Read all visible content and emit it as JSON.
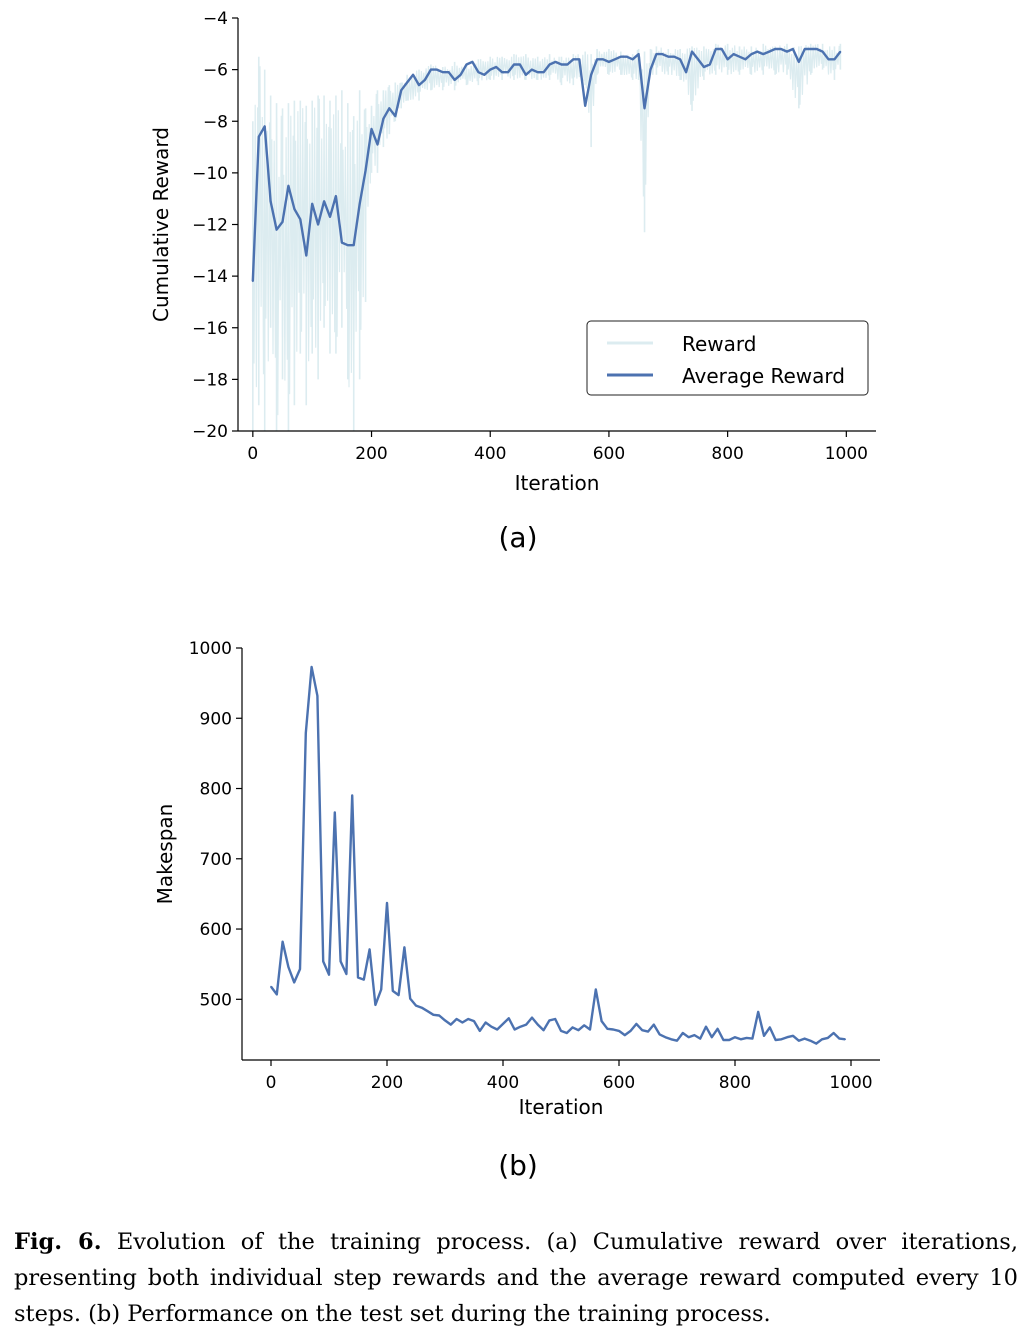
{
  "chart_data": [
    {
      "id": "a",
      "type": "line",
      "panel_label": "(a)",
      "xlabel": "Iteration",
      "ylabel": "Cumulative Reward",
      "xlim": [
        -25,
        1050
      ],
      "ylim": [
        -20,
        -4
      ],
      "xticks": [
        0,
        200,
        400,
        600,
        800,
        1000
      ],
      "yticks": [
        -20,
        -18,
        -16,
        -14,
        -12,
        -10,
        -8,
        -6,
        -4
      ],
      "ytick_labels": [
        "−20",
        "−18",
        "−16",
        "−14",
        "−12",
        "−10",
        "−8",
        "−6",
        "−4"
      ],
      "legend_position": "lower-right",
      "series": [
        {
          "name": "Reward",
          "color": "#dcecf0",
          "envelope": {
            "x": [
              0,
              10,
              20,
              30,
              40,
              50,
              60,
              70,
              80,
              90,
              100,
              110,
              120,
              130,
              140,
              150,
              160,
              170,
              180,
              190,
              200,
              210,
              220,
              230,
              240,
              250,
              260,
              280,
              300,
              320,
              340,
              360,
              380,
              400,
              420,
              440,
              460,
              480,
              500,
              520,
              540,
              560,
              570,
              580,
              600,
              620,
              640,
              650,
              660,
              670,
              680,
              700,
              720,
              740,
              760,
              780,
              800,
              820,
              840,
              860,
              880,
              900,
              920,
              940,
              960,
              980,
              990
            ],
            "low": [
              -20,
              -19,
              -20,
              -16,
              -20,
              -18,
              -20,
              -19,
              -17,
              -19,
              -17,
              -18,
              -16,
              -17,
              -17,
              -16,
              -18,
              -20,
              -18,
              -15,
              -10,
              -10,
              -9,
              -8.5,
              -8,
              -7.5,
              -7.2,
              -7.2,
              -6.8,
              -6.8,
              -6.8,
              -6.6,
              -6.6,
              -6.4,
              -6.4,
              -6.4,
              -6.4,
              -6.4,
              -6.4,
              -6.6,
              -6.6,
              -6.6,
              -9,
              -6.2,
              -6.2,
              -6.2,
              -6.4,
              -6.4,
              -12.3,
              -6.2,
              -6.2,
              -6.2,
              -6.4,
              -7.6,
              -6.4,
              -6.2,
              -6.2,
              -6.2,
              -6.2,
              -6.2,
              -6.2,
              -6.2,
              -7.5,
              -6.2,
              -6.0,
              -6.4,
              -6.0
            ],
            "high": [
              -8,
              -5.5,
              -6,
              -7,
              -7.3,
              -7.5,
              -7.3,
              -7.2,
              -7.2,
              -7.4,
              -7.2,
              -7.0,
              -7.0,
              -7.2,
              -7.0,
              -6.8,
              -7.3,
              -7.8,
              -6.8,
              -7.5,
              -7.4,
              -6.8,
              -6.8,
              -6.6,
              -6.5,
              -6.5,
              -6.2,
              -6.0,
              -5.8,
              -5.9,
              -5.7,
              -5.8,
              -5.6,
              -5.5,
              -5.5,
              -5.4,
              -5.4,
              -5.5,
              -5.4,
              -5.5,
              -5.4,
              -5.3,
              -5.4,
              -5.2,
              -5.2,
              -5.3,
              -5.4,
              -5.2,
              -5.3,
              -5.2,
              -5.1,
              -5.2,
              -5.2,
              -5.1,
              -5.1,
              -5.0,
              -5.0,
              -5.1,
              -5.1,
              -5.0,
              -5.1,
              -5.0,
              -5.1,
              -5.0,
              -5.0,
              -5.1,
              -5.0
            ]
          }
        },
        {
          "name": "Average Reward",
          "color": "#4c72b0",
          "x": [
            0,
            10,
            20,
            30,
            40,
            50,
            60,
            70,
            80,
            90,
            100,
            110,
            120,
            130,
            140,
            150,
            160,
            170,
            180,
            190,
            200,
            210,
            220,
            230,
            240,
            250,
            260,
            270,
            280,
            290,
            300,
            310,
            320,
            330,
            340,
            350,
            360,
            370,
            380,
            390,
            400,
            410,
            420,
            430,
            440,
            450,
            460,
            470,
            480,
            490,
            500,
            510,
            520,
            530,
            540,
            550,
            560,
            570,
            580,
            590,
            600,
            610,
            620,
            630,
            640,
            650,
            660,
            670,
            680,
            690,
            700,
            710,
            720,
            730,
            740,
            750,
            760,
            770,
            780,
            790,
            800,
            810,
            820,
            830,
            840,
            850,
            860,
            870,
            880,
            890,
            900,
            910,
            920,
            930,
            940,
            950,
            960,
            970,
            980,
            990
          ],
          "values": [
            -14.2,
            -8.6,
            -8.2,
            -11.1,
            -12.2,
            -11.9,
            -10.5,
            -11.4,
            -11.8,
            -13.2,
            -11.2,
            -12.0,
            -11.1,
            -11.7,
            -10.9,
            -12.7,
            -12.8,
            -12.8,
            -11.2,
            -9.9,
            -8.3,
            -8.9,
            -7.9,
            -7.5,
            -7.8,
            -6.8,
            -6.5,
            -6.2,
            -6.6,
            -6.4,
            -6.0,
            -6.0,
            -6.1,
            -6.1,
            -6.4,
            -6.2,
            -5.8,
            -5.7,
            -6.1,
            -6.2,
            -6.0,
            -5.9,
            -6.1,
            -6.1,
            -5.8,
            -5.8,
            -6.2,
            -6.0,
            -6.1,
            -6.1,
            -5.8,
            -5.7,
            -5.8,
            -5.8,
            -5.6,
            -5.6,
            -7.4,
            -6.2,
            -5.6,
            -5.6,
            -5.7,
            -5.6,
            -5.5,
            -5.5,
            -5.6,
            -5.4,
            -7.5,
            -6.0,
            -5.4,
            -5.4,
            -5.5,
            -5.5,
            -5.6,
            -6.1,
            -5.3,
            -5.6,
            -5.9,
            -5.8,
            -5.2,
            -5.2,
            -5.6,
            -5.4,
            -5.5,
            -5.6,
            -5.4,
            -5.3,
            -5.4,
            -5.3,
            -5.2,
            -5.2,
            -5.3,
            -5.2,
            -5.7,
            -5.2,
            -5.2,
            -5.2,
            -5.3,
            -5.6,
            -5.6,
            -5.3
          ]
        }
      ]
    },
    {
      "id": "b",
      "type": "line",
      "panel_label": "(b)",
      "xlabel": "Iteration",
      "ylabel": "Makespan",
      "xlim": [
        -50,
        1050
      ],
      "ylim": [
        413.6,
        1000
      ],
      "xticks": [
        0,
        200,
        400,
        600,
        800,
        1000
      ],
      "yticks": [
        500,
        600,
        700,
        800,
        900,
        1000
      ],
      "ytick_labels": [
        "500",
        "600",
        "700",
        "800",
        "900",
        "1000"
      ],
      "series": [
        {
          "name": "Makespan",
          "color": "#4c72b0",
          "x": [
            0,
            10,
            20,
            30,
            40,
            50,
            60,
            70,
            80,
            90,
            100,
            110,
            120,
            130,
            140,
            150,
            160,
            170,
            180,
            190,
            200,
            210,
            220,
            230,
            240,
            250,
            260,
            270,
            280,
            290,
            300,
            310,
            320,
            330,
            340,
            350,
            360,
            370,
            380,
            390,
            400,
            410,
            420,
            430,
            440,
            450,
            460,
            470,
            480,
            490,
            500,
            510,
            520,
            530,
            540,
            550,
            560,
            570,
            580,
            590,
            600,
            610,
            620,
            630,
            640,
            650,
            660,
            670,
            680,
            690,
            700,
            710,
            720,
            730,
            740,
            750,
            760,
            770,
            780,
            790,
            800,
            810,
            820,
            830,
            840,
            850,
            860,
            870,
            880,
            890,
            900,
            910,
            920,
            930,
            940,
            950,
            960,
            970,
            980,
            990
          ],
          "values": [
            518,
            507,
            582,
            546,
            524,
            543,
            879,
            973,
            932,
            554,
            535,
            766,
            554,
            536,
            790,
            531,
            528,
            571,
            492,
            514,
            637,
            512,
            506,
            574,
            501,
            491,
            488,
            483,
            478,
            477,
            470,
            464,
            472,
            467,
            472,
            469,
            455,
            467,
            461,
            457,
            465,
            473,
            457,
            461,
            464,
            474,
            464,
            456,
            470,
            472,
            455,
            452,
            460,
            456,
            463,
            457,
            514,
            469,
            458,
            457,
            455,
            449,
            455,
            465,
            456,
            454,
            464,
            450,
            446,
            443,
            441,
            452,
            446,
            449,
            444,
            461,
            446,
            458,
            442,
            442,
            446,
            443,
            445,
            444,
            482,
            448,
            460,
            442,
            443,
            446,
            448,
            441,
            444,
            441,
            437,
            443,
            445,
            452,
            444,
            443
          ]
        }
      ]
    }
  ],
  "caption": {
    "label": "Fig. 6.",
    "text": "Evolution of the training process. (a) Cumulative reward over iterations, presenting both individual step rewards and the average reward computed every 10 steps. (b) Performance on the test set during the training process."
  }
}
